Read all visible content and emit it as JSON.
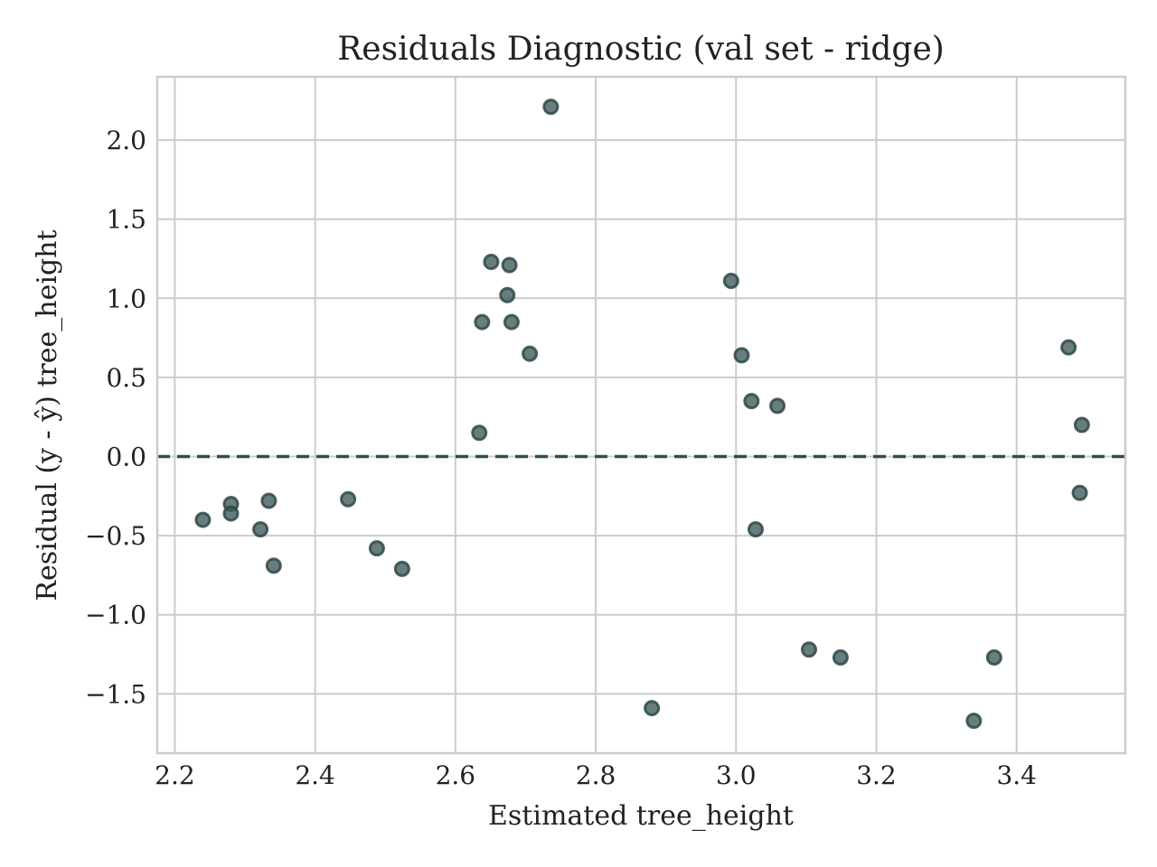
{
  "chart_data": {
    "type": "scatter",
    "title": "Residuals Diagnostic (val set - ridge)",
    "xlabel": "Estimated tree_height",
    "ylabel": "Residual (y - ŷ) tree_height",
    "xlim": [
      2.175,
      3.555
    ],
    "ylim": [
      -1.875,
      2.4
    ],
    "grid": true,
    "x_ticks": [
      2.2,
      2.4,
      2.6,
      2.8,
      3.0,
      3.2,
      3.4
    ],
    "x_tick_labels": [
      "2.2",
      "2.4",
      "2.6",
      "2.8",
      "3.0",
      "3.2",
      "3.4"
    ],
    "y_ticks": [
      -1.5,
      -1.0,
      -0.5,
      0.0,
      0.5,
      1.0,
      1.5,
      2.0
    ],
    "y_tick_labels": [
      "−1.5",
      "−1.0",
      "−0.5",
      "0.0",
      "0.5",
      "1.0",
      "1.5",
      "2.0"
    ],
    "reference_line": {
      "y": 0.0,
      "style": "dashed"
    },
    "point_color": "#3d5a5a",
    "point_edge_color": "#2e4848",
    "line_color": "#2f4f4f",
    "series": [
      {
        "name": "residuals",
        "points": [
          [
            2.24,
            -0.4
          ],
          [
            2.28,
            -0.3
          ],
          [
            2.28,
            -0.36
          ],
          [
            2.322,
            -0.46
          ],
          [
            2.334,
            -0.28
          ],
          [
            2.341,
            -0.69
          ],
          [
            2.447,
            -0.27
          ],
          [
            2.488,
            -0.58
          ],
          [
            2.524,
            -0.71
          ],
          [
            2.634,
            0.15
          ],
          [
            2.638,
            0.85
          ],
          [
            2.651,
            1.23
          ],
          [
            2.674,
            1.02
          ],
          [
            2.677,
            1.21
          ],
          [
            2.68,
            0.85
          ],
          [
            2.706,
            0.65
          ],
          [
            2.736,
            2.21
          ],
          [
            2.88,
            -1.59
          ],
          [
            2.993,
            1.11
          ],
          [
            3.008,
            0.64
          ],
          [
            3.022,
            0.35
          ],
          [
            3.028,
            -0.46
          ],
          [
            3.059,
            0.32
          ],
          [
            3.104,
            -1.22
          ],
          [
            3.149,
            -1.27
          ],
          [
            3.339,
            -1.67
          ],
          [
            3.368,
            -1.27
          ],
          [
            3.474,
            0.69
          ],
          [
            3.49,
            -0.23
          ],
          [
            3.493,
            0.2
          ]
        ]
      }
    ]
  }
}
